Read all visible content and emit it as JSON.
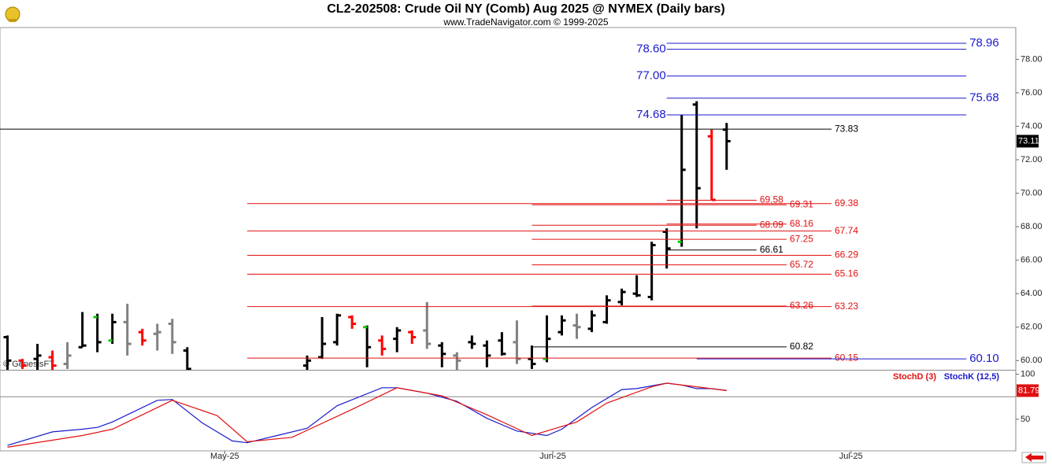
{
  "chart_data": [
    {
      "type": "ohlc",
      "title": "CL2-202508:  Crude Oil NY (Comb) Aug 2025 @ NYMEX  (Daily bars)",
      "subtitle": "www.TradeNavigator.com © 1999-2025",
      "watermark": "© GenesisFT",
      "x": [
        0,
        1,
        2,
        3,
        4,
        5,
        6,
        7,
        8,
        9,
        10,
        11,
        12,
        20,
        21,
        22,
        23,
        24,
        25,
        26,
        27,
        28,
        29,
        30,
        31,
        32,
        33,
        34,
        35,
        36,
        37,
        38,
        39,
        40,
        41,
        42,
        43,
        44,
        45,
        46,
        47,
        48
      ],
      "open": [
        61.4,
        60.0,
        60.1,
        60.2,
        59.8,
        60.8,
        62.6,
        61.2,
        62.3,
        61.7,
        61.6,
        62.2,
        60.6,
        59.7,
        60.2,
        61.1,
        62.6,
        62.0,
        61.2,
        61.3,
        61.7,
        61.8,
        60.9,
        60.3,
        61.1,
        60.9,
        61.2,
        61.1,
        60.1,
        60.1,
        61.7,
        62.1,
        61.9,
        62.3,
        63.5,
        64.0,
        63.8,
        67.7,
        67.1,
        75.3,
        73.4,
        73.8
      ],
      "high": [
        61.5,
        60.1,
        61.0,
        60.6,
        61.1,
        62.9,
        62.8,
        62.8,
        63.4,
        61.9,
        62.2,
        62.5,
        60.8,
        60.3,
        62.6,
        62.8,
        62.7,
        62.1,
        61.5,
        62.0,
        61.8,
        63.5,
        61.1,
        60.5,
        61.5,
        61.2,
        61.7,
        62.4,
        60.9,
        62.7,
        62.7,
        62.8,
        63.0,
        63.9,
        64.3,
        65.1,
        67.1,
        67.9,
        74.7,
        75.5,
        73.8,
        74.2
      ],
      "low": [
        59.3,
        59.5,
        59.3,
        59.4,
        59.5,
        60.8,
        60.5,
        61.0,
        60.3,
        60.9,
        60.6,
        60.4,
        59.3,
        59.3,
        60.1,
        60.9,
        61.9,
        59.6,
        60.3,
        60.5,
        61.0,
        60.7,
        59.6,
        59.4,
        60.7,
        59.6,
        60.3,
        59.8,
        59.5,
        59.9,
        61.5,
        61.3,
        61.7,
        62.2,
        63.3,
        63.8,
        63.6,
        65.5,
        66.8,
        67.9,
        69.6,
        71.4
      ],
      "close": [
        60.0,
        59.7,
        60.3,
        59.7,
        60.3,
        60.9,
        61.1,
        62.3,
        61.0,
        61.2,
        61.7,
        61.1,
        59.5,
        60.0,
        61.0,
        62.7,
        62.2,
        60.8,
        60.7,
        61.8,
        61.4,
        61.0,
        60.4,
        60.0,
        61.0,
        60.3,
        60.4,
        60.1,
        59.8,
        61.3,
        62.4,
        62.0,
        62.7,
        63.6,
        64.1,
        63.9,
        66.9,
        66.7,
        71.4,
        70.3,
        69.6,
        73.11
      ],
      "bar_colors": [
        "#000000",
        "#ff0000",
        "#000000",
        "#ff0000",
        "#808080",
        "#000000",
        "#000000",
        "#000000",
        "#808080",
        "#ff0000",
        "#808080",
        "#808080",
        "#000000",
        "#000000",
        "#000000",
        "#000000",
        "#ff0000",
        "#000000",
        "#ff0000",
        "#000000",
        "#ff0000",
        "#808080",
        "#000000",
        "#808080",
        "#000000",
        "#000000",
        "#000000",
        "#808080",
        "#000000",
        "#000000",
        "#000000",
        "#808080",
        "#000000",
        "#000000",
        "#000000",
        "#000000",
        "#000000",
        "#000000",
        "#000000",
        "#000000",
        "#ff0000",
        "#000000"
      ],
      "open_colors": [
        "#000000",
        "#ff0000",
        "#000000",
        "#ff0000",
        "#808080",
        "#000000",
        "#00cc00",
        "#00cc00",
        "#808080",
        "#ff0000",
        "#808080",
        "#808080",
        "#000000",
        "#000000",
        "#000000",
        "#000000",
        "#ff0000",
        "#00cc00",
        "#ff0000",
        "#000000",
        "#ff0000",
        "#808080",
        "#000000",
        "#808080",
        "#000000",
        "#000000",
        "#000000",
        "#808080",
        "#000000",
        "#00cc00",
        "#000000",
        "#808080",
        "#000000",
        "#000000",
        "#000000",
        "#000000",
        "#000000",
        "#000000",
        "#00cc00",
        "#000000",
        "#ff0000",
        "#000000"
      ],
      "xlim": [
        -0.5,
        67.3
      ],
      "ylim": [
        59.45,
        79.9
      ],
      "yticks": [
        {
          "value": 60,
          "label": "60.00"
        },
        {
          "value": 62,
          "label": "62.00"
        },
        {
          "value": 64,
          "label": "64.00"
        },
        {
          "value": 66,
          "label": "66.00"
        },
        {
          "value": 68,
          "label": "68.00"
        },
        {
          "value": 70,
          "label": "70.00"
        },
        {
          "value": 72,
          "label": "72.00"
        },
        {
          "value": 74,
          "label": "74.00"
        },
        {
          "value": 76,
          "label": "76.00"
        },
        {
          "value": 78,
          "label": "78.00"
        }
      ],
      "levels": [
        {
          "value": 78.96,
          "color": "#1a1acc",
          "x_range": [
            44,
            64
          ],
          "label_side": "right"
        },
        {
          "value": 78.6,
          "label": "78.60",
          "color": "#1a1acc",
          "x_range": [
            44,
            64
          ],
          "label_side": "left"
        },
        {
          "value": 77,
          "label": "77.00",
          "color": "#1a1acc",
          "x_range": [
            44,
            64
          ],
          "label_side": "left"
        },
        {
          "value": 75.68,
          "color": "#1a1acc",
          "x_range": [
            44,
            64
          ],
          "label_side": "right"
        },
        {
          "value": 74.68,
          "color": "#1a1acc",
          "x_range": [
            44,
            64
          ],
          "label_side": "left"
        },
        {
          "value": 73.83,
          "color": "#000000",
          "x_range": [
            -0.5,
            55
          ],
          "label_side": "right"
        },
        {
          "value": 69.58,
          "color": "#e01010",
          "x_range": [
            44,
            50
          ],
          "label_side": "right"
        },
        {
          "value": 69.31,
          "color": "#e01010",
          "x_range": [
            35,
            52
          ],
          "label_side": "right"
        },
        {
          "value": 69.38,
          "color": "#e01010",
          "x_range": [
            16,
            55
          ],
          "label_side": "right"
        },
        {
          "value": 68.09,
          "color": "#e01010",
          "x_range": [
            35,
            50
          ],
          "label_side": "right"
        },
        {
          "value": 68.16,
          "color": "#e01010",
          "x_range": [
            44,
            52
          ],
          "label_side": "right"
        },
        {
          "value": 67.74,
          "color": "#e01010",
          "x_range": [
            16,
            55
          ],
          "label_side": "right"
        },
        {
          "value": 67.25,
          "color": "#e01010",
          "x_range": [
            35,
            52
          ],
          "label_side": "right"
        },
        {
          "value": 66.61,
          "color": "#000000",
          "x_range": [
            44,
            50
          ],
          "label_side": "right"
        },
        {
          "value": 66.29,
          "color": "#e01010",
          "x_range": [
            16,
            55
          ],
          "label_side": "right"
        },
        {
          "value": 65.72,
          "color": "#e01010",
          "x_range": [
            35,
            52
          ],
          "label_side": "right"
        },
        {
          "value": 65.16,
          "color": "#e01010",
          "x_range": [
            16,
            55
          ],
          "label_side": "right"
        },
        {
          "value": 63.26,
          "color": "#e01010",
          "x_range": [
            35,
            52
          ],
          "label_side": "right"
        },
        {
          "value": 63.23,
          "color": "#e01010",
          "x_range": [
            16,
            55
          ],
          "label_side": "right"
        },
        {
          "value": 60.82,
          "color": "#000000",
          "x_range": [
            35,
            52
          ],
          "label_side": "right"
        },
        {
          "value": 60.15,
          "color": "#e01010",
          "x_range": [
            16,
            55
          ],
          "label_side": "right"
        },
        {
          "value": 60.1,
          "label": "60.10",
          "color": "#1a1acc",
          "x_range": [
            46,
            64
          ],
          "label_side": "right"
        }
      ]
    },
    {
      "type": "line",
      "series": [
        {
          "name": "StochK (12,5)",
          "color": "#1a1acc",
          "x": [
            0,
            3,
            5,
            6,
            7,
            10,
            11,
            13,
            15,
            16,
            18,
            20,
            22,
            25,
            26,
            28,
            30,
            32,
            34,
            36,
            37,
            39,
            41,
            42,
            44,
            45,
            46,
            47,
            48
          ],
          "values": [
            21,
            36,
            39,
            41,
            47,
            71,
            72,
            46,
            26,
            24,
            32,
            40,
            65,
            85,
            85,
            79,
            70,
            51,
            37,
            32,
            39,
            63,
            83,
            84,
            90,
            88,
            84,
            84,
            82
          ]
        },
        {
          "name": "StochD (3)",
          "color": "#e01010",
          "x": [
            0,
            5,
            7,
            9,
            11,
            14,
            16,
            19,
            23,
            26,
            29,
            32,
            35,
            38,
            40,
            43,
            44,
            46,
            48
          ],
          "values": [
            19,
            32,
            39,
            55,
            71,
            54,
            25,
            30,
            61,
            85,
            76,
            55,
            32,
            47,
            68,
            86,
            90,
            86,
            81.79
          ]
        }
      ],
      "xlim": [
        -0.5,
        67.3
      ],
      "ylim": [
        15,
        104
      ],
      "yticks": [
        50,
        100
      ],
      "ref_line": 75,
      "xticks": [
        {
          "value": 14.5,
          "label": "May-25"
        },
        {
          "value": 36.4,
          "label": "Jun-25"
        },
        {
          "value": 56.3,
          "label": "Jul-25"
        }
      ]
    }
  ]
}
